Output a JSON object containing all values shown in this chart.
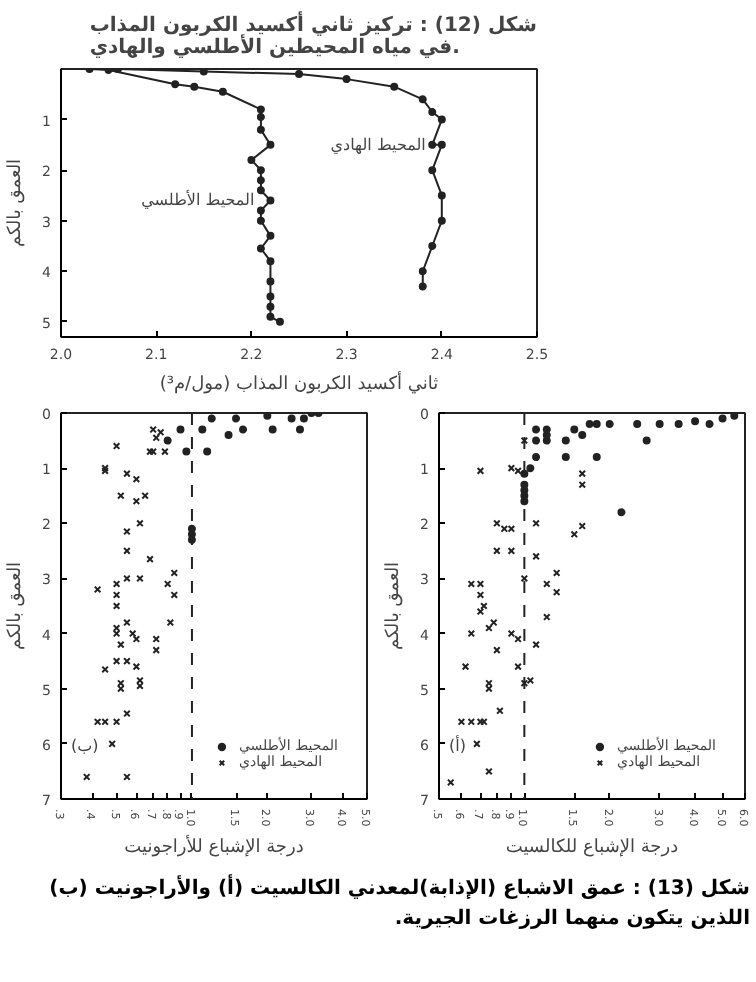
{
  "chart_data": [
    {
      "type": "line",
      "title": "شكل (12) : تركيز ثاني أكسيد الكربون المذاب في مياه المحيطين الأطلسي والهادي.",
      "xlabel": "ثاني أكسيد الكربون المذاب (مول/م³)",
      "ylabel": "العمق بالكم",
      "marker": "circle",
      "grid": false,
      "legend": false,
      "xlim": [
        2.0,
        2.5
      ],
      "ylim": [
        5.3,
        0
      ],
      "xticks": [
        {
          "value": 2.0,
          "label": "2.0"
        },
        2.1,
        2.2,
        2.3,
        2.4,
        2.5
      ],
      "yticks": [
        1,
        2,
        3,
        4,
        5
      ],
      "series": [
        {
          "name": "المحيط الأطلسي",
          "color": "#222222",
          "x": [
            2.03,
            2.05,
            2.12,
            2.14,
            2.17,
            2.21,
            2.21,
            2.21,
            2.22,
            2.2,
            2.21,
            2.21,
            2.21,
            2.22,
            2.21,
            2.21,
            2.22,
            2.21,
            2.22,
            2.22,
            2.22,
            2.22,
            2.22,
            2.23
          ],
          "values": [
            0.0,
            0.02,
            0.3,
            0.35,
            0.45,
            0.8,
            0.95,
            1.2,
            1.5,
            1.8,
            2.0,
            2.2,
            2.4,
            2.6,
            2.8,
            3.0,
            3.3,
            3.55,
            3.8,
            4.2,
            4.5,
            4.7,
            4.9,
            5.0
          ]
        },
        {
          "name": "المحيط الهادي",
          "color": "#222222",
          "x": [
            2.06,
            2.15,
            2.25,
            2.3,
            2.35,
            2.38,
            2.39,
            2.4,
            2.39,
            2.4,
            2.39,
            2.4,
            2.4,
            2.39,
            2.38,
            2.38
          ],
          "values": [
            0.0,
            0.05,
            0.1,
            0.2,
            0.35,
            0.6,
            0.85,
            1.0,
            1.5,
            1.5,
            2.0,
            2.5,
            3.0,
            3.5,
            4.0,
            4.3
          ]
        }
      ]
    },
    {
      "type": "scatter",
      "xlabel": "درجة الإشباع للأراجونيت",
      "ylabel": "العمق بالكم",
      "log": "x",
      "grid": false,
      "legend": "bottom right",
      "annotations": [
        "(ب)"
      ],
      "xlim": [
        0.3,
        5.0
      ],
      "ylim": [
        7,
        0
      ],
      "xticks": [
        {
          "value": 0.3,
          "label": ".3"
        },
        {
          "value": 0.4,
          "label": ".4"
        },
        {
          "value": 0.5,
          "label": ".5"
        },
        {
          "value": 0.6,
          "label": ".6"
        },
        {
          "value": 0.7,
          "label": ".7"
        },
        {
          "value": 0.8,
          "label": ".8"
        },
        {
          "value": 0.9,
          "label": ".9"
        },
        {
          "value": 1.0,
          "label": "1.0"
        },
        1.5,
        {
          "value": 2.0,
          "label": "2.0"
        },
        {
          "value": 3.0,
          "label": "3.0"
        },
        {
          "value": 4.0,
          "label": "4.0"
        },
        {
          "value": 5.0,
          "label": "5.0"
        }
      ],
      "yticks": [
        0,
        1,
        2,
        3,
        4,
        5,
        6,
        7
      ],
      "ref_lines": [
        {
          "axis": "x",
          "value": 1.0,
          "line_style": "dashed",
          "color": "#222222"
        }
      ],
      "series": [
        {
          "name": "المحيط الأطلسي",
          "color": "#222222",
          "marker": "circle",
          "x": [
            1.0,
            1.0,
            1.0,
            0.8,
            0.9,
            1.1,
            1.2,
            1.5,
            2.0,
            2.5,
            3.0,
            3.2,
            1.4,
            1.6,
            2.1,
            2.7,
            2.8,
            1.15,
            0.95
          ],
          "values": [
            2.1,
            2.2,
            2.3,
            0.5,
            0.3,
            0.3,
            0.1,
            0.1,
            0.05,
            0.1,
            0.0,
            0.0,
            0.4,
            0.3,
            0.3,
            0.3,
            0.1,
            0.7,
            0.7
          ]
        },
        {
          "name": "المحيط الهادي",
          "color": "#222222",
          "marker": "cross",
          "x": [
            0.45,
            0.45,
            0.5,
            0.55,
            0.6,
            0.52,
            0.6,
            0.65,
            0.62,
            0.55,
            0.55,
            0.68,
            0.42,
            0.5,
            0.55,
            0.62,
            0.8,
            0.85,
            0.85,
            0.5,
            0.5,
            0.55,
            0.5,
            0.5,
            0.58,
            0.6,
            0.72,
            0.72,
            0.52,
            0.5,
            0.55,
            0.6,
            0.45,
            0.52,
            0.52,
            0.62,
            0.62,
            0.82,
            0.45,
            0.42,
            0.5,
            0.55,
            0.48,
            0.38,
            0.55,
            0.7,
            0.72,
            0.68,
            0.7,
            0.78,
            0.75
          ],
          "values": [
            1.0,
            1.05,
            0.6,
            1.1,
            1.2,
            1.5,
            1.6,
            1.5,
            2.0,
            2.15,
            2.5,
            2.65,
            3.2,
            3.1,
            3.0,
            3.0,
            3.1,
            2.9,
            3.3,
            3.3,
            3.5,
            3.8,
            3.9,
            4.0,
            4.0,
            4.1,
            4.1,
            4.3,
            4.2,
            4.5,
            4.5,
            4.6,
            4.65,
            4.9,
            5.0,
            4.85,
            4.95,
            3.8,
            5.6,
            5.6,
            5.6,
            5.45,
            6.0,
            6.6,
            6.6,
            0.3,
            0.45,
            0.7,
            0.7,
            0.7,
            0.35
          ]
        }
      ]
    },
    {
      "type": "scatter",
      "xlabel": "درجة الإشباع للكالسيت",
      "ylabel": "العمق بالكم",
      "log": "x",
      "grid": false,
      "legend": "bottom right",
      "annotations": [
        "(أ)",
        "شكل (13) : عمق الاشباع (الإذابة)لمعدني الكالسيت (أ) والأراجونيت (ب) اللذين يتكون منهما الرزغات الجيرية."
      ],
      "xlim": [
        0.5,
        6.0
      ],
      "ylim": [
        7,
        0
      ],
      "xticks": [
        {
          "value": 0.5,
          "label": ".5"
        },
        {
          "value": 0.6,
          "label": ".6"
        },
        {
          "value": 0.7,
          "label": ".7"
        },
        {
          "value": 0.8,
          "label": ".8"
        },
        {
          "value": 0.9,
          "label": ".9"
        },
        {
          "value": 1.0,
          "label": "1.0"
        },
        1.5,
        {
          "value": 2.0,
          "label": "2.0"
        },
        {
          "value": 3.0,
          "label": "3.0"
        },
        {
          "value": 4.0,
          "label": "4.0"
        },
        {
          "value": 5.0,
          "label": "5.0"
        },
        {
          "value": 6.0,
          "label": "6.0"
        }
      ],
      "yticks": [
        0,
        1,
        2,
        3,
        4,
        5,
        6,
        7
      ],
      "ref_lines": [
        {
          "axis": "x",
          "value": 1.0,
          "line_style": "dashed",
          "color": "#222222"
        }
      ],
      "series": [
        {
          "name": "المحيط الأطلسي",
          "color": "#222222",
          "marker": "circle",
          "x": [
            1.0,
            1.0,
            1.0,
            1.0,
            1.0,
            1.1,
            1.1,
            1.2,
            1.2,
            1.2,
            1.4,
            1.5,
            1.7,
            1.8,
            2.0,
            2.5,
            3.0,
            3.5,
            4.0,
            4.5,
            5.0,
            5.5,
            1.1,
            1.4,
            1.8,
            2.7,
            1.6,
            2.2,
            1.05
          ],
          "values": [
            1.3,
            1.4,
            1.5,
            1.6,
            1.1,
            0.5,
            0.3,
            0.3,
            0.4,
            0.5,
            0.5,
            0.3,
            0.2,
            0.2,
            0.2,
            0.2,
            0.2,
            0.2,
            0.15,
            0.2,
            0.1,
            0.05,
            0.8,
            0.8,
            0.8,
            0.5,
            0.4,
            1.8,
            1.0
          ]
        },
        {
          "name": "المحيط الهادي",
          "color": "#222222",
          "marker": "cross",
          "x": [
            0.7,
            0.9,
            0.95,
            0.8,
            0.85,
            0.9,
            0.8,
            0.9,
            1.1,
            1.1,
            1.2,
            1.3,
            1.3,
            1.2,
            1.0,
            0.65,
            0.7,
            0.7,
            0.7,
            0.72,
            0.75,
            0.78,
            0.65,
            0.8,
            0.9,
            0.95,
            1.1,
            0.95,
            0.62,
            0.75,
            0.75,
            1.0,
            1.05,
            0.82,
            0.6,
            0.65,
            0.7,
            0.72,
            0.68,
            0.75,
            0.55,
            1.5,
            1.6,
            1.6,
            1.6,
            1.0
          ],
          "values": [
            1.05,
            1.0,
            1.05,
            2.0,
            2.1,
            2.1,
            2.5,
            2.5,
            2.0,
            2.6,
            3.1,
            3.25,
            2.9,
            3.7,
            3.0,
            3.1,
            3.1,
            3.3,
            3.6,
            3.5,
            3.9,
            3.8,
            4.0,
            4.3,
            4.0,
            4.1,
            4.2,
            4.6,
            4.6,
            4.9,
            5.0,
            4.9,
            4.85,
            5.4,
            5.6,
            5.6,
            5.6,
            5.6,
            6.0,
            6.5,
            6.7,
            2.2,
            1.3,
            1.1,
            2.05,
            0.5
          ]
        }
      ]
    }
  ]
}
